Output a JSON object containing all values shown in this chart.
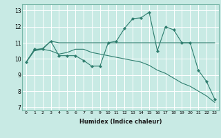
{
  "title": "",
  "xlabel": "Humidex (Indice chaleur)",
  "xlim": [
    -0.5,
    23.5
  ],
  "ylim": [
    6.8,
    13.4
  ],
  "yticks": [
    7,
    8,
    9,
    10,
    11,
    12,
    13
  ],
  "xticks": [
    0,
    1,
    2,
    3,
    4,
    5,
    6,
    7,
    8,
    9,
    10,
    11,
    12,
    13,
    14,
    15,
    16,
    17,
    18,
    19,
    20,
    21,
    22,
    23
  ],
  "bg_color": "#c8eae4",
  "grid_color": "#ffffff",
  "line_color": "#2e7d6e",
  "lines": [
    {
      "x": [
        0,
        1,
        2,
        3,
        4,
        5,
        6,
        7,
        8,
        9,
        10,
        11,
        12,
        13,
        14,
        15,
        16,
        17,
        18,
        19,
        20,
        21,
        22,
        23
      ],
      "y": [
        9.8,
        10.6,
        10.6,
        11.1,
        10.2,
        10.2,
        10.2,
        9.9,
        9.55,
        9.55,
        11.0,
        11.1,
        11.9,
        12.5,
        12.55,
        12.9,
        10.5,
        12.0,
        11.8,
        11.0,
        11.0,
        9.3,
        8.6,
        7.5
      ],
      "marker": "D",
      "markersize": 2.2
    },
    {
      "x": [
        0,
        1,
        2,
        3,
        4,
        5,
        6,
        7,
        8,
        9,
        10,
        11,
        12,
        13,
        14,
        15,
        16,
        17,
        18,
        19,
        20,
        21,
        22,
        23
      ],
      "y": [
        9.8,
        10.55,
        10.65,
        11.1,
        11.0,
        11.0,
        11.0,
        11.0,
        11.0,
        11.0,
        11.0,
        11.0,
        11.0,
        11.0,
        11.0,
        11.0,
        11.0,
        11.0,
        11.0,
        11.0,
        11.0,
        11.0,
        11.0,
        11.0
      ],
      "marker": null,
      "markersize": 0
    },
    {
      "x": [
        0,
        1,
        2,
        3,
        4,
        5,
        6,
        7,
        8,
        9,
        10,
        11,
        12,
        13,
        14,
        15,
        16,
        17,
        18,
        19,
        20,
        21,
        22,
        23
      ],
      "y": [
        9.8,
        10.5,
        10.6,
        10.5,
        10.3,
        10.4,
        10.6,
        10.6,
        10.4,
        10.3,
        10.2,
        10.1,
        10.0,
        9.9,
        9.8,
        9.6,
        9.3,
        9.1,
        8.8,
        8.5,
        8.3,
        8.0,
        7.7,
        7.3
      ],
      "marker": null,
      "markersize": 0
    }
  ]
}
